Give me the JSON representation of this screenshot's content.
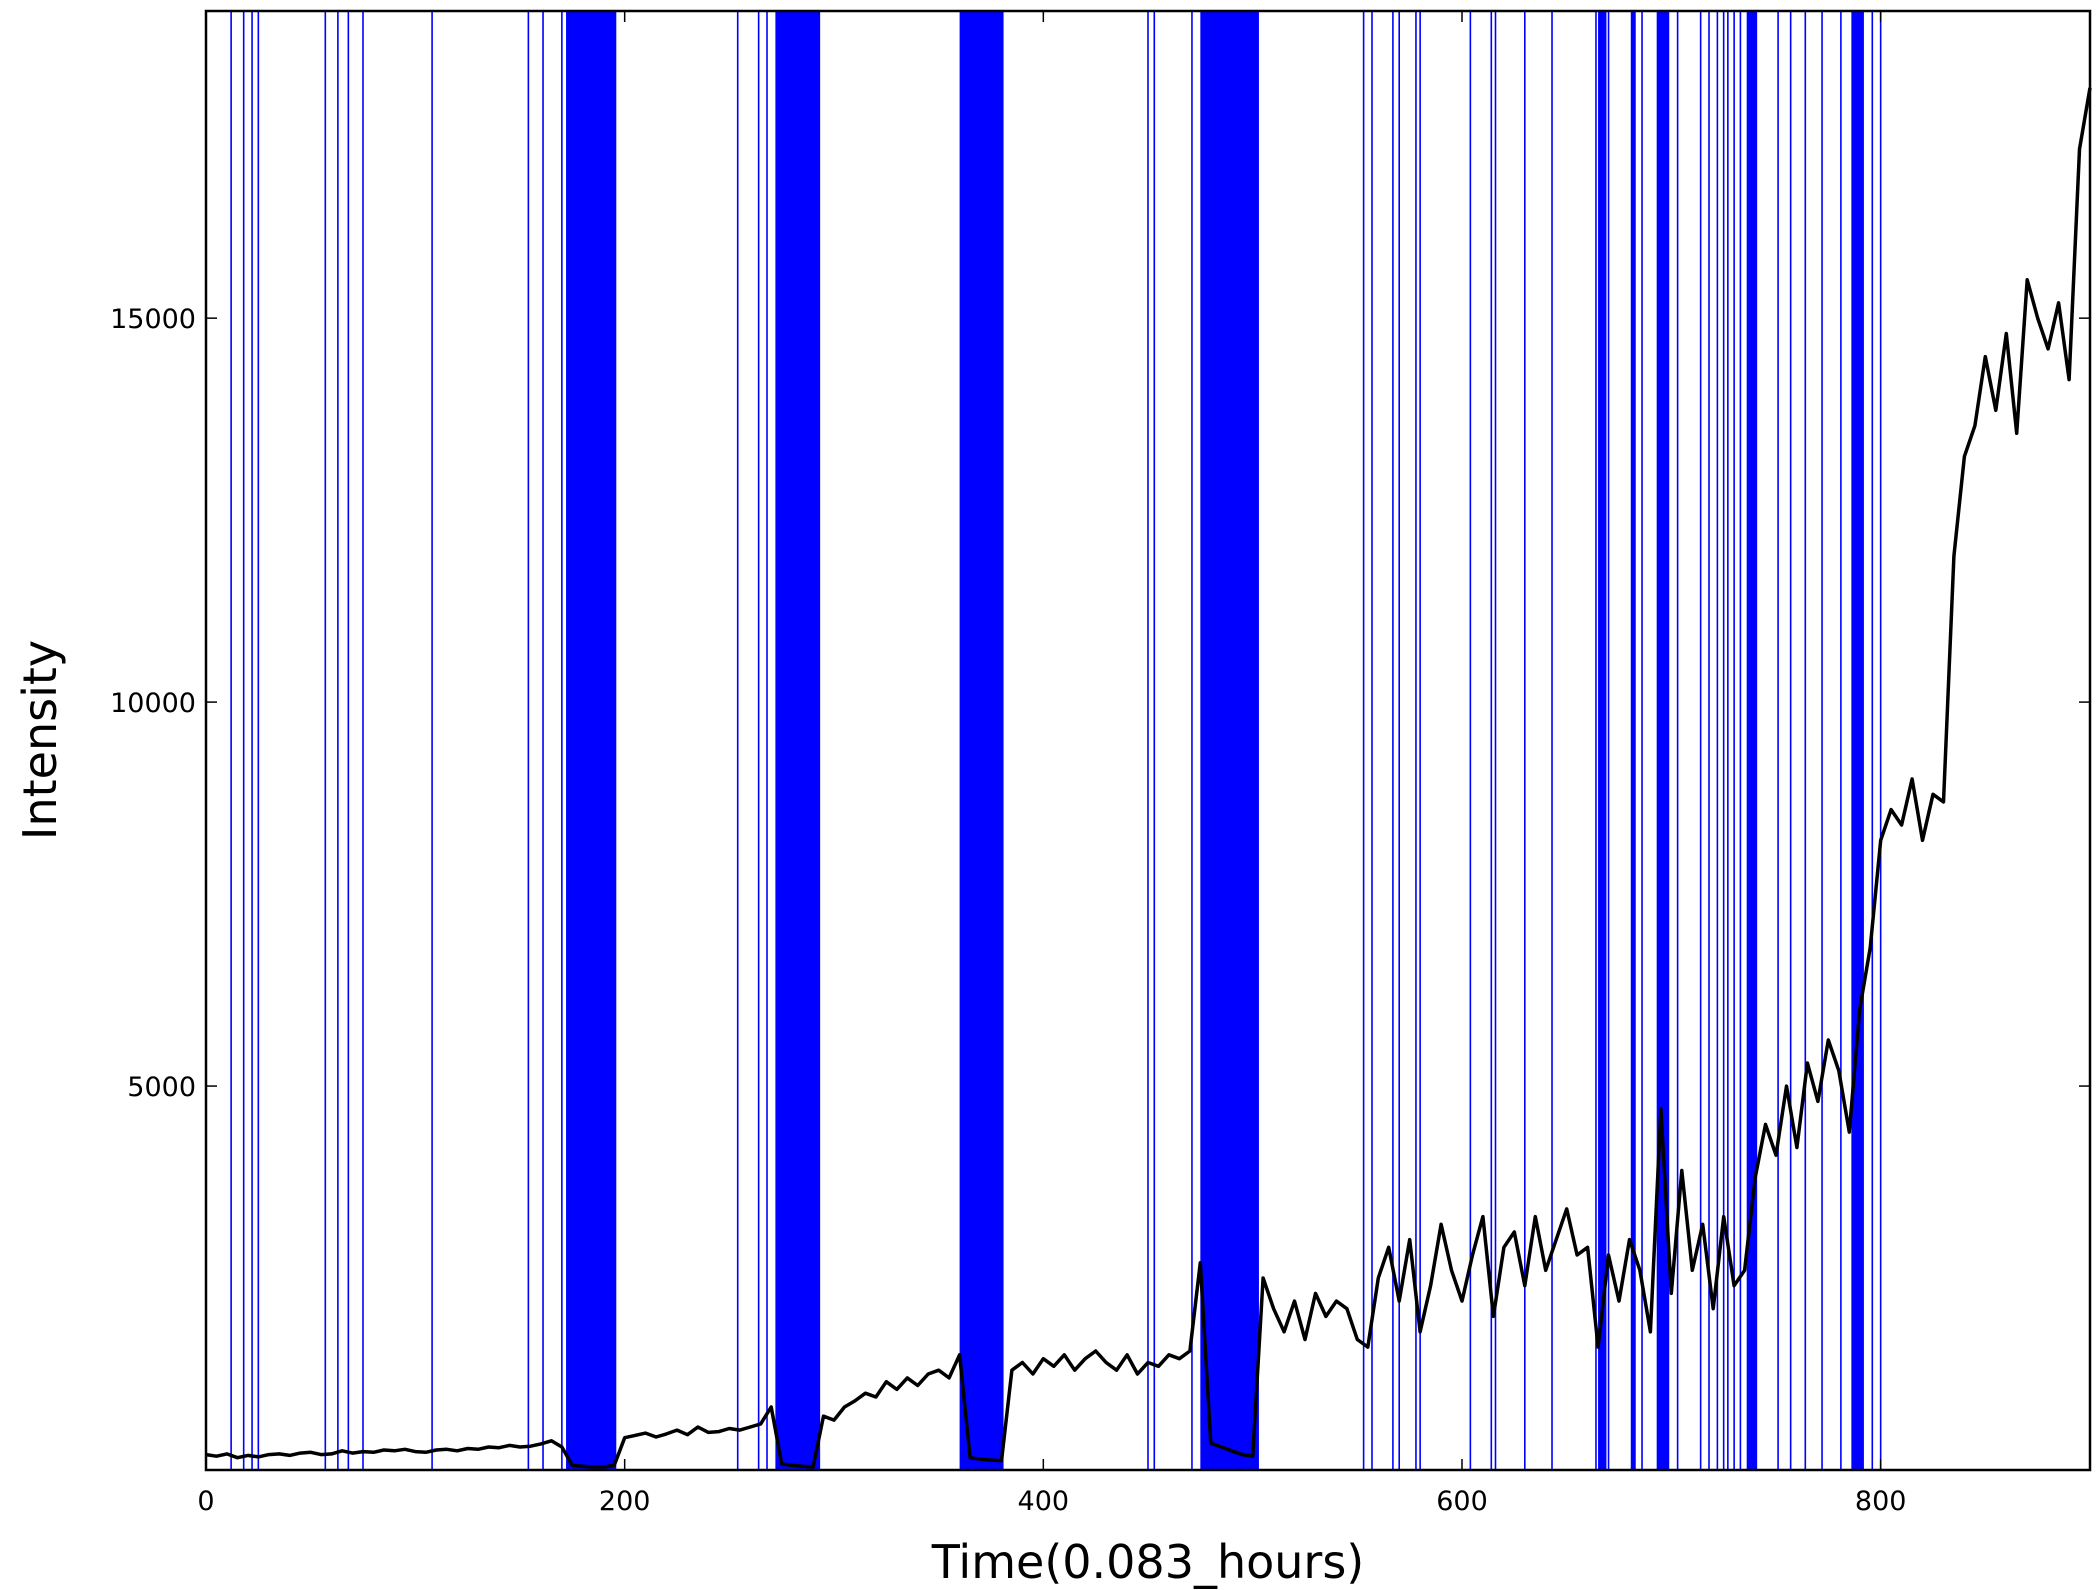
{
  "chart_data": {
    "type": "line",
    "xlabel": "Time(0.083_hours)",
    "ylabel": "Intensity",
    "xlim": [
      0,
      900
    ],
    "ylim": [
      0,
      19000
    ],
    "xticks": [
      0,
      200,
      400,
      600,
      800
    ],
    "yticks": [
      5000,
      10000,
      15000
    ],
    "vline_color": "#0000ff",
    "vlines": [
      12,
      18,
      22,
      25,
      57,
      63,
      68,
      75,
      108,
      154,
      161,
      170,
      254,
      264,
      268,
      293,
      450,
      453,
      471,
      553,
      557,
      567,
      570,
      578,
      580,
      604,
      614,
      616,
      630,
      643,
      664,
      668,
      670,
      681,
      686,
      696,
      703,
      714,
      718,
      722,
      725,
      727,
      730,
      733,
      751,
      757,
      764,
      772,
      781,
      796,
      800
    ],
    "spans": [
      [
        172,
        196
      ],
      [
        272,
        293
      ],
      [
        360,
        381
      ],
      [
        475,
        503
      ],
      [
        665,
        669
      ],
      [
        681,
        683
      ],
      [
        693,
        699
      ],
      [
        736,
        741
      ],
      [
        786,
        792
      ]
    ],
    "x": [
      0,
      5,
      10,
      15,
      20,
      25,
      30,
      35,
      40,
      45,
      50,
      55,
      60,
      65,
      70,
      75,
      80,
      85,
      90,
      95,
      100,
      105,
      110,
      115,
      120,
      125,
      130,
      135,
      140,
      145,
      150,
      155,
      160,
      165,
      170,
      175,
      180,
      185,
      190,
      195,
      200,
      205,
      210,
      215,
      220,
      225,
      230,
      235,
      240,
      245,
      250,
      255,
      260,
      265,
      270,
      275,
      280,
      285,
      290,
      295,
      300,
      305,
      310,
      315,
      320,
      325,
      330,
      335,
      340,
      345,
      350,
      355,
      360,
      365,
      370,
      375,
      380,
      385,
      390,
      395,
      400,
      405,
      410,
      415,
      420,
      425,
      430,
      435,
      440,
      445,
      450,
      455,
      460,
      465,
      470,
      475,
      480,
      485,
      490,
      495,
      500,
      505,
      510,
      515,
      520,
      525,
      530,
      535,
      540,
      545,
      550,
      555,
      560,
      565,
      570,
      575,
      580,
      585,
      590,
      595,
      600,
      605,
      610,
      615,
      620,
      625,
      630,
      635,
      640,
      645,
      650,
      655,
      660,
      665,
      670,
      675,
      680,
      685,
      690,
      695,
      700,
      705,
      710,
      715,
      720,
      725,
      730,
      735,
      740,
      745,
      750,
      755,
      760,
      765,
      770,
      775,
      780,
      785,
      790,
      795,
      800,
      805,
      810,
      815,
      820,
      825,
      830,
      835,
      840,
      845,
      850,
      855,
      860,
      865,
      870,
      875,
      880,
      885,
      890,
      895,
      900
    ],
    "series": [
      {
        "color": "#000000",
        "values": [
          200,
          180,
          210,
          160,
          190,
          170,
          200,
          210,
          190,
          220,
          230,
          200,
          210,
          250,
          220,
          240,
          230,
          260,
          250,
          270,
          240,
          230,
          260,
          270,
          250,
          280,
          270,
          300,
          290,
          320,
          300,
          310,
          340,
          380,
          300,
          60,
          50,
          40,
          40,
          60,
          420,
          450,
          480,
          430,
          470,
          520,
          460,
          560,
          490,
          500,
          540,
          520,
          560,
          600,
          820,
          80,
          60,
          50,
          40,
          700,
          650,
          820,
          900,
          1000,
          950,
          1150,
          1050,
          1200,
          1100,
          1250,
          1300,
          1200,
          1500,
          160,
          140,
          130,
          120,
          1300,
          1400,
          1250,
          1450,
          1350,
          1500,
          1300,
          1450,
          1550,
          1400,
          1300,
          1500,
          1250,
          1400,
          1350,
          1500,
          1450,
          1550,
          2700,
          350,
          300,
          250,
          200,
          180,
          2500,
          2100,
          1800,
          2200,
          1700,
          2300,
          2000,
          2200,
          2100,
          1700,
          1600,
          2500,
          2900,
          2200,
          3000,
          1800,
          2400,
          3200,
          2600,
          2200,
          2800,
          3300,
          2000,
          2900,
          3100,
          2400,
          3300,
          2600,
          3000,
          3400,
          2800,
          2900,
          1600,
          2800,
          2200,
          3000,
          2600,
          1800,
          4700,
          2300,
          3900,
          2600,
          3200,
          2100,
          3300,
          2400,
          2600,
          3800,
          4500,
          4100,
          5000,
          4200,
          5300,
          4800,
          5600,
          5200,
          4400,
          6000,
          6800,
          8200,
          8600,
          8400,
          9000,
          8200,
          8800,
          8700,
          11900,
          13200,
          13600,
          14500,
          13800,
          14800,
          13500,
          15500,
          15000,
          14600,
          15200,
          14200,
          17200,
          18000
        ]
      }
    ]
  }
}
